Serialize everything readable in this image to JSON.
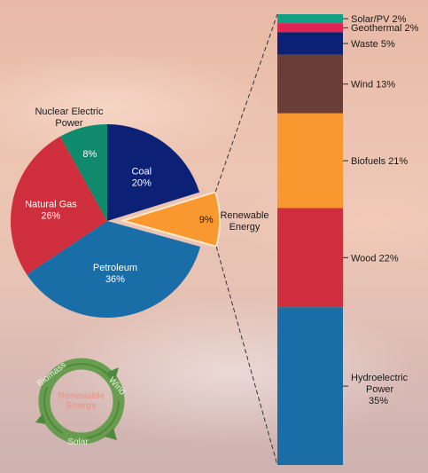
{
  "chart_data": [
    {
      "type": "pie",
      "slices": [
        {
          "label": "Coal",
          "value": 20,
          "value_label": "20%",
          "color": "#0c2176",
          "text_color": "#ffffff"
        },
        {
          "label": "Renewable Energy",
          "label_lines": [
            "Renewable",
            "Energy"
          ],
          "value": 9,
          "value_label": "9%",
          "color": "#f8982f",
          "text_color": "#1a1a1a",
          "exploded": true
        },
        {
          "label": "Petroleum",
          "value": 36,
          "value_label": "36%",
          "color": "#1a6ea8",
          "text_color": "#ffffff"
        },
        {
          "label": "Natural Gas",
          "value": 26,
          "value_label": "26%",
          "color": "#cf2f3c",
          "text_color": "#ffffff"
        },
        {
          "label": "Nuclear Electric Power",
          "label_lines": [
            "Nuclear Electric",
            "Power"
          ],
          "value": 8,
          "value_label": "8%",
          "color": "#0f8a6d",
          "text_color": "#ffffff"
        }
      ]
    },
    {
      "type": "bar",
      "orientation": "stacked-vertical",
      "segments": [
        {
          "label": "Solar/PV 2%",
          "value": 2,
          "color": "#129f83"
        },
        {
          "label": "Geothermal 2%",
          "value": 2,
          "color": "#e22255"
        },
        {
          "label": "Waste  5%",
          "value": 5,
          "color": "#0c2176"
        },
        {
          "label": "Wind 13%",
          "value": 13,
          "color": "#6b3d38"
        },
        {
          "label": "Biofuels  21%",
          "value": 21,
          "color": "#f8982f"
        },
        {
          "label": "Wood 22%",
          "value": 22,
          "color": "#cf2f3c"
        },
        {
          "label": "Hydroelectric Power 35%",
          "label_lines": [
            "Hydroelectric",
            "Power",
            "35%"
          ],
          "value": 35,
          "color": "#1a6ea8"
        }
      ]
    }
  ],
  "logo": {
    "text": "Renewable Energy",
    "ring_words": [
      "Biomass",
      "Wind",
      "Solar"
    ]
  }
}
